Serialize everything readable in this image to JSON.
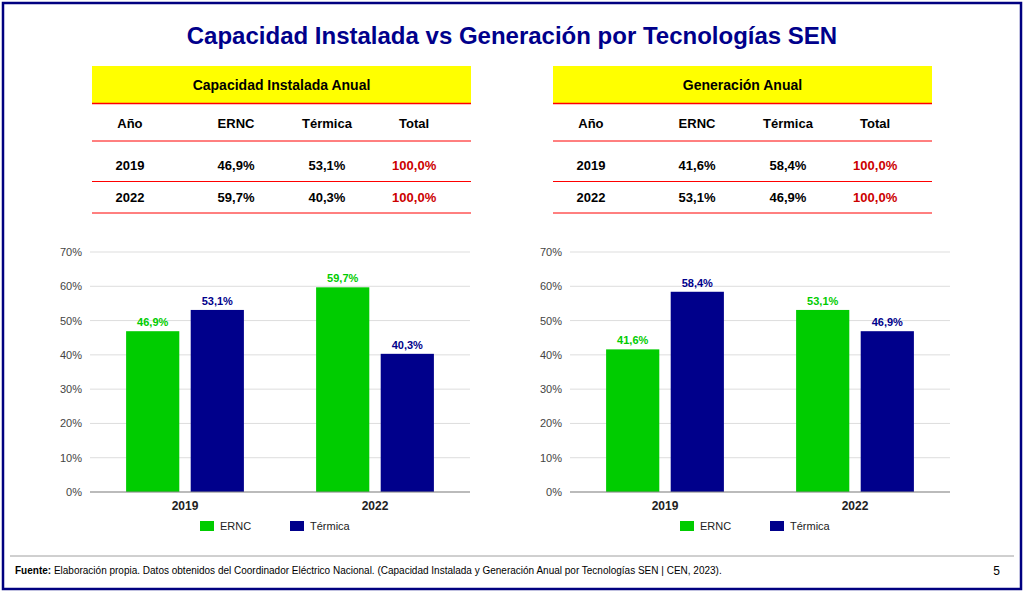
{
  "title": "Capacidad Instalada vs Generación por Tecnologías SEN",
  "footnote": [
    "Fuente:",
    " Elaboración propia. Datos obtenidos del Coordinador Eléctrico Nacional. (Capacidad Instalada y Generación Anual por Tecnologías SEN | CEN, 2023)."
  ],
  "page_number": "5",
  "chart_data": [
    {
      "type": "table",
      "title": "Capacidad Instalada Anual",
      "x_label": "Año",
      "categories": [
        "2019",
        "2022"
      ],
      "series": [
        {
          "name": "ERNC",
          "values": [
            46.9,
            59.7
          ],
          "value_labels": [
            "46,9%",
            "59,7%"
          ]
        },
        {
          "name": "Térmica",
          "values": [
            53.1,
            40.3
          ],
          "value_labels": [
            "53,1%",
            "40,3%"
          ]
        },
        {
          "name": "Total",
          "values": [
            100.0,
            100.0
          ],
          "value_labels": [
            "100,0%",
            "100,0%"
          ]
        }
      ]
    },
    {
      "type": "table",
      "title": "Generación Anual",
      "x_label": "Año",
      "categories": [
        "2019",
        "2022"
      ],
      "series": [
        {
          "name": "ERNC",
          "values": [
            41.6,
            53.1
          ],
          "value_labels": [
            "41,6%",
            "53,1%"
          ]
        },
        {
          "name": "Térmica",
          "values": [
            58.4,
            46.9
          ],
          "value_labels": [
            "58,4%",
            "46,9%"
          ]
        },
        {
          "name": "Total",
          "values": [
            100.0,
            100.0
          ],
          "value_labels": [
            "100,0%",
            "100,0%"
          ]
        }
      ]
    },
    {
      "type": "bar",
      "categories": [
        "2019",
        "2022"
      ],
      "series": [
        {
          "name": "ERNC",
          "color": "#00CC00",
          "values": [
            46.9,
            59.7
          ],
          "value_labels": [
            "46,9%",
            "59,7%"
          ]
        },
        {
          "name": "Térmica",
          "color": "#00008B",
          "values": [
            53.1,
            40.3
          ],
          "value_labels": [
            "53,1%",
            "40,3%"
          ]
        }
      ],
      "ylim": [
        0,
        70
      ],
      "yticks": [
        {
          "value": 0,
          "label": "0%"
        },
        {
          "value": 10,
          "label": "10%"
        },
        {
          "value": 20,
          "label": "20%"
        },
        {
          "value": 30,
          "label": "30%"
        },
        {
          "value": 40,
          "label": "40%"
        },
        {
          "value": 50,
          "label": "50%"
        },
        {
          "value": 60,
          "label": "60%"
        },
        {
          "value": 70,
          "label": "70%"
        }
      ],
      "grid": true,
      "legend": "bottom",
      "data_labels": true
    },
    {
      "type": "bar",
      "categories": [
        "2019",
        "2022"
      ],
      "series": [
        {
          "name": "ERNC",
          "color": "#00CC00",
          "values": [
            41.6,
            53.1
          ],
          "value_labels": [
            "41,6%",
            "53,1%"
          ]
        },
        {
          "name": "Térmica",
          "color": "#00008B",
          "values": [
            58.4,
            46.9
          ],
          "value_labels": [
            "58,4%",
            "46,9%"
          ]
        }
      ],
      "ylim": [
        0,
        70
      ],
      "yticks": [
        {
          "value": 0,
          "label": "0%"
        },
        {
          "value": 10,
          "label": "10%"
        },
        {
          "value": 20,
          "label": "20%"
        },
        {
          "value": 30,
          "label": "30%"
        },
        {
          "value": 40,
          "label": "40%"
        },
        {
          "value": 50,
          "label": "50%"
        },
        {
          "value": 60,
          "label": "60%"
        },
        {
          "value": 70,
          "label": "70%"
        }
      ],
      "grid": true,
      "legend": "bottom",
      "data_labels": true
    }
  ]
}
